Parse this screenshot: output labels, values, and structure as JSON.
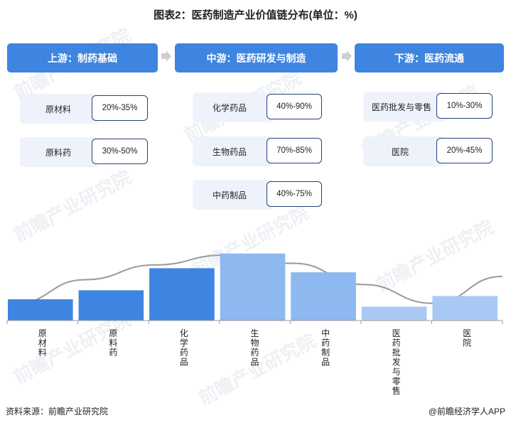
{
  "title": "图表2：医药制造产业价值链分布(单位：%)",
  "stages": [
    {
      "label": "上游：制药基础"
    },
    {
      "label": "中游：医药研发与制造"
    },
    {
      "label": "下游：医药流通"
    }
  ],
  "upstream": [
    {
      "name": "原材料",
      "value": "20%-35%"
    },
    {
      "name": "原料药",
      "value": "30%-50%"
    }
  ],
  "midstream": [
    {
      "name": "化学药品",
      "value": "40%-90%"
    },
    {
      "name": "生物药品",
      "value": "70%-85%"
    },
    {
      "name": "中药制品",
      "value": "40%-75%"
    }
  ],
  "downstream": [
    {
      "name": "医药批发与零售",
      "value": "10%-30%"
    },
    {
      "name": "医院",
      "value": "20%-45%"
    }
  ],
  "chart_data": {
    "type": "bar",
    "categories": [
      "原材料",
      "原料药",
      "化学药品",
      "生物药品",
      "中药制品",
      "医药批发与零售",
      "医院"
    ],
    "values": [
      26,
      37,
      64,
      82,
      59,
      17,
      30
    ],
    "bar_colors": [
      "#3d85e0",
      "#3d85e0",
      "#3d85e0",
      "#8db8f0",
      "#8db8f0",
      "#a9c9f4",
      "#a9c9f4"
    ],
    "curve_color": "#999999",
    "curve": [
      0.21,
      0.5,
      0.68,
      0.8,
      0.7,
      0.44,
      0.21,
      0.54
    ],
    "ylim": [
      0,
      100
    ]
  },
  "watermark": "前瞻产业研究院",
  "footer": {
    "source": "资料来源：前瞻产业研究院",
    "brand": "@前瞻经济学人APP"
  }
}
